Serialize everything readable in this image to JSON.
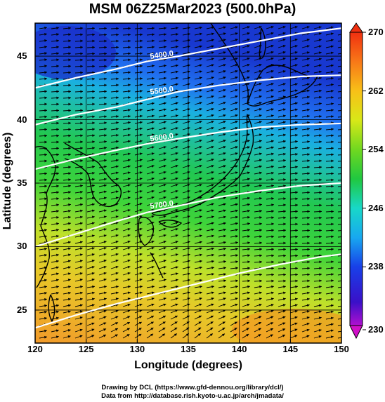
{
  "title": "MSM 06Z25Mar2023 (500.0hPa)",
  "xlabel": "Longitude (degrees)",
  "ylabel": "Latitude  (degrees)",
  "credits": {
    "line1": "Drawing by DCL (https://www.gfd-dennou.org/library/dcl/)",
    "line2": "Data from http://database.rish.kyoto-u.ac.jp/arch/jmadata/"
  },
  "chart_data": {
    "type": "heatmap",
    "title": "MSM 06Z25Mar2023 (500.0hPa)",
    "xlabel": "Longitude (degrees)",
    "ylabel": "Latitude  (degrees)",
    "xlim": [
      120,
      150
    ],
    "ylim": [
      22.4,
      47.6
    ],
    "x_ticks": [
      120,
      125,
      130,
      135,
      140,
      145,
      150
    ],
    "y_ticks": [
      25,
      30,
      35,
      40,
      45
    ],
    "colorbar": {
      "range": [
        230,
        270
      ],
      "ticks": [
        230,
        238,
        246,
        254,
        262,
        270
      ]
    },
    "contours": [
      {
        "label": "5400.0",
        "points": [
          [
            120,
            42.5
          ],
          [
            124,
            43.3
          ],
          [
            128,
            44.0
          ],
          [
            131,
            44.6
          ],
          [
            134,
            45.0
          ],
          [
            138,
            45.6
          ],
          [
            142,
            46.2
          ],
          [
            146,
            46.8
          ],
          [
            150,
            47.2
          ]
        ]
      },
      {
        "label": "5500.0",
        "points": [
          [
            120,
            39.6
          ],
          [
            124,
            40.4
          ],
          [
            128,
            41.0
          ],
          [
            131,
            41.6
          ],
          [
            134,
            42.2
          ],
          [
            138,
            42.7
          ],
          [
            142,
            43.1
          ],
          [
            146,
            43.4
          ],
          [
            150,
            43.5
          ]
        ]
      },
      {
        "label": "5600.0",
        "points": [
          [
            120,
            36.1
          ],
          [
            124,
            36.9
          ],
          [
            128,
            37.6
          ],
          [
            131,
            38.1
          ],
          [
            134,
            38.5
          ],
          [
            138,
            39.0
          ],
          [
            142,
            39.4
          ],
          [
            146,
            39.6
          ],
          [
            150,
            39.7
          ]
        ]
      },
      {
        "label": "5700.0",
        "points": [
          [
            120,
            30.0
          ],
          [
            124,
            31.0
          ],
          [
            128,
            32.0
          ],
          [
            131,
            32.7
          ],
          [
            134,
            33.2
          ],
          [
            138,
            33.9
          ],
          [
            142,
            34.4
          ],
          [
            146,
            34.8
          ],
          [
            150,
            35.0
          ]
        ]
      },
      {
        "label": "",
        "points": [
          [
            120,
            23.6
          ],
          [
            124,
            24.6
          ],
          [
            128,
            25.5
          ],
          [
            132,
            26.3
          ],
          [
            136,
            27.1
          ],
          [
            140,
            27.9
          ],
          [
            144,
            28.6
          ],
          [
            148,
            29.2
          ],
          [
            150,
            29.4
          ]
        ]
      }
    ]
  },
  "colors": {
    "field_north": "#1a3de0",
    "field_mid": "#2ec830",
    "field_south": "#f2a72c",
    "contour": "#ffffff",
    "coast": "#000000",
    "vector": "#000000"
  }
}
